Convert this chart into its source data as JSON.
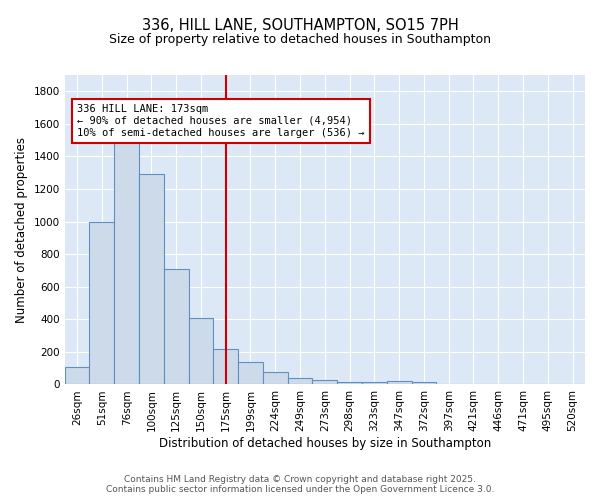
{
  "title_line1": "336, HILL LANE, SOUTHAMPTON, SO15 7PH",
  "title_line2": "Size of property relative to detached houses in Southampton",
  "xlabel": "Distribution of detached houses by size in Southampton",
  "ylabel": "Number of detached properties",
  "categories": [
    "26sqm",
    "51sqm",
    "76sqm",
    "100sqm",
    "125sqm",
    "150sqm",
    "175sqm",
    "199sqm",
    "224sqm",
    "249sqm",
    "273sqm",
    "298sqm",
    "323sqm",
    "347sqm",
    "372sqm",
    "397sqm",
    "421sqm",
    "446sqm",
    "471sqm",
    "495sqm",
    "520sqm"
  ],
  "values": [
    110,
    1000,
    1510,
    1290,
    710,
    410,
    215,
    135,
    75,
    40,
    30,
    15,
    15,
    20,
    15,
    0,
    0,
    0,
    0,
    0,
    0
  ],
  "bar_color": "#ccdaea",
  "bar_edge_color": "#6090c0",
  "bar_edge_width": 0.8,
  "red_line_index": 6,
  "red_line_color": "#cc0000",
  "annotation_text": "336 HILL LANE: 173sqm\n← 90% of detached houses are smaller (4,954)\n10% of semi-detached houses are larger (536) →",
  "annotation_box_facecolor": "#ffffff",
  "annotation_border_color": "#cc0000",
  "ylim": [
    0,
    1900
  ],
  "yticks": [
    0,
    200,
    400,
    600,
    800,
    1000,
    1200,
    1400,
    1600,
    1800
  ],
  "fig_background_color": "#ffffff",
  "plot_background_color": "#dce8f5",
  "grid_color": "#ffffff",
  "footer_line1": "Contains HM Land Registry data © Crown copyright and database right 2025.",
  "footer_line2": "Contains public sector information licensed under the Open Government Licence 3.0.",
  "title_fontsize": 10.5,
  "subtitle_fontsize": 9,
  "axis_label_fontsize": 8.5,
  "tick_fontsize": 7.5,
  "annotation_fontsize": 7.5,
  "footer_fontsize": 6.5
}
